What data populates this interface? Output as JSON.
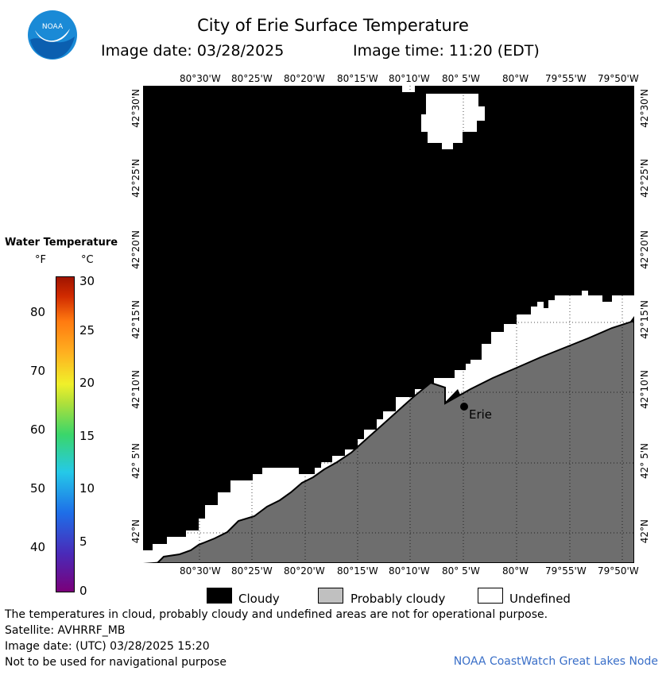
{
  "title": "City of Erie Surface Temperature",
  "image_date": "Image date: 03/28/2025",
  "image_time": "Image time: 11:20 (EDT)",
  "logo_text": "NOAA",
  "lon_ticks": [
    "80°30'W",
    "80°25'W",
    "80°20'W",
    "80°15'W",
    "80°10'W",
    "80° 5'W",
    "80°W",
    "79°55'W",
    "79°50'W"
  ],
  "lat_ticks": [
    "42°30'N",
    "42°25'N",
    "42°20'N",
    "42°15'N",
    "42°10'N",
    "42° 5'N",
    "42°N"
  ],
  "colorbar": {
    "title": "Water Temperature",
    "unit_f": "°F",
    "unit_c": "°C",
    "f_labels": [
      "80",
      "70",
      "60",
      "50",
      "40"
    ],
    "c_labels": [
      "30",
      "25",
      "20",
      "15",
      "10",
      "5",
      "0"
    ]
  },
  "place_label": "Erie",
  "legend": {
    "cloudy": "Cloudy",
    "probably_cloudy": "Probably cloudy",
    "undefined": "Undefined",
    "cloudy_color": "#000000",
    "probably_cloudy_color": "#c0c0c0",
    "undefined_color": "#ffffff",
    "land_color": "#6e6e6e"
  },
  "footer": {
    "disclaimer": "The temperatures in cloud, probably cloudy and undefined areas are not for operational purpose.",
    "satellite": "Satellite: AVHRRF_MB",
    "utc_date": "Image date: (UTC) 03/28/2025  15:20",
    "navigation": "Not to be used for navigational purpose",
    "node": "NOAA CoastWatch Great Lakes Node"
  }
}
